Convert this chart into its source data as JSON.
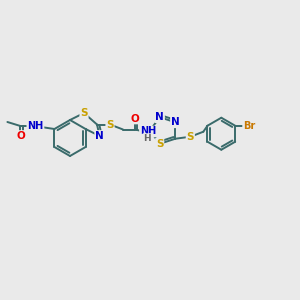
{
  "background_color": "#eaeaea",
  "bond_color": "#3a6b6b",
  "atom_colors": {
    "S": "#c8a000",
    "N": "#0000cc",
    "O": "#ee0000",
    "Br": "#c87800",
    "H": "#666666",
    "C": "#3a6b6b"
  },
  "line_width": 1.4,
  "font_size": 7.5,
  "figsize": [
    3.0,
    3.0
  ],
  "dpi": 100
}
